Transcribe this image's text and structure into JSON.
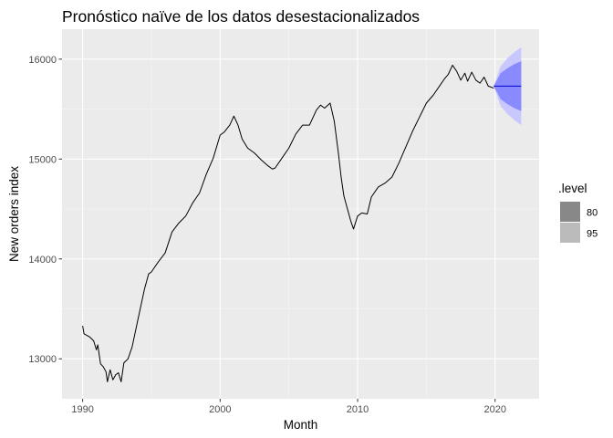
{
  "chart_data": {
    "type": "line",
    "title": "Pronóstico naïve de los datos desestacionalizados",
    "xlabel": "Month",
    "ylabel": "New orders index",
    "xlim": [
      1988.5,
      2023.2
    ],
    "ylim": [
      12600,
      16300
    ],
    "x_ticks": [
      1990,
      2000,
      2010,
      2020
    ],
    "x_tick_labels": [
      "1990",
      "2000",
      "2010",
      "2020"
    ],
    "y_ticks": [
      13000,
      14000,
      15000,
      16000
    ],
    "y_tick_labels": [
      "13000",
      "14000",
      "15000",
      "16000"
    ],
    "grid": true,
    "legend": {
      "title": ".level",
      "position": "right",
      "entries": [
        {
          "label": "80",
          "color": "#888888"
        },
        {
          "label": "95",
          "color": "#bbbbbb"
        }
      ]
    },
    "series": [
      {
        "type": "line",
        "color": "#000000",
        "points": [
          [
            1990.0,
            13330
          ],
          [
            1990.1,
            13250
          ],
          [
            1990.5,
            13220
          ],
          [
            1990.8,
            13180
          ],
          [
            1991.0,
            13090
          ],
          [
            1991.1,
            13140
          ],
          [
            1991.3,
            12950
          ],
          [
            1991.5,
            12920
          ],
          [
            1991.7,
            12870
          ],
          [
            1991.8,
            12770
          ],
          [
            1992.0,
            12890
          ],
          [
            1992.2,
            12790
          ],
          [
            1992.4,
            12840
          ],
          [
            1992.6,
            12860
          ],
          [
            1992.8,
            12770
          ],
          [
            1993.0,
            12960
          ],
          [
            1993.3,
            13000
          ],
          [
            1993.6,
            13120
          ],
          [
            1994.0,
            13380
          ],
          [
            1994.5,
            13700
          ],
          [
            1994.8,
            13850
          ],
          [
            1995.0,
            13870
          ],
          [
            1995.5,
            13970
          ],
          [
            1996.0,
            14060
          ],
          [
            1996.5,
            14270
          ],
          [
            1997.0,
            14360
          ],
          [
            1997.5,
            14430
          ],
          [
            1998.0,
            14560
          ],
          [
            1998.5,
            14660
          ],
          [
            1999.0,
            14850
          ],
          [
            1999.5,
            15010
          ],
          [
            2000.0,
            15240
          ],
          [
            2000.3,
            15270
          ],
          [
            2000.7,
            15340
          ],
          [
            2001.0,
            15430
          ],
          [
            2001.3,
            15340
          ],
          [
            2001.6,
            15200
          ],
          [
            2002.0,
            15110
          ],
          [
            2002.5,
            15060
          ],
          [
            2003.0,
            14990
          ],
          [
            2003.5,
            14930
          ],
          [
            2003.8,
            14900
          ],
          [
            2004.0,
            14910
          ],
          [
            2004.5,
            15010
          ],
          [
            2005.0,
            15110
          ],
          [
            2005.5,
            15250
          ],
          [
            2006.0,
            15340
          ],
          [
            2006.5,
            15340
          ],
          [
            2007.0,
            15490
          ],
          [
            2007.3,
            15540
          ],
          [
            2007.6,
            15510
          ],
          [
            2008.0,
            15560
          ],
          [
            2008.3,
            15380
          ],
          [
            2008.6,
            15060
          ],
          [
            2008.8,
            14820
          ],
          [
            2009.0,
            14630
          ],
          [
            2009.3,
            14480
          ],
          [
            2009.5,
            14380
          ],
          [
            2009.7,
            14300
          ],
          [
            2010.0,
            14430
          ],
          [
            2010.3,
            14460
          ],
          [
            2010.7,
            14450
          ],
          [
            2011.0,
            14620
          ],
          [
            2011.5,
            14720
          ],
          [
            2012.0,
            14760
          ],
          [
            2012.5,
            14820
          ],
          [
            2013.0,
            14960
          ],
          [
            2013.5,
            15120
          ],
          [
            2014.0,
            15280
          ],
          [
            2014.5,
            15420
          ],
          [
            2015.0,
            15560
          ],
          [
            2015.5,
            15640
          ],
          [
            2016.0,
            15740
          ],
          [
            2016.3,
            15800
          ],
          [
            2016.6,
            15850
          ],
          [
            2016.9,
            15940
          ],
          [
            2017.2,
            15880
          ],
          [
            2017.5,
            15790
          ],
          [
            2017.8,
            15860
          ],
          [
            2018.0,
            15780
          ],
          [
            2018.3,
            15870
          ],
          [
            2018.6,
            15790
          ],
          [
            2018.9,
            15760
          ],
          [
            2019.2,
            15820
          ],
          [
            2019.5,
            15730
          ],
          [
            2019.9,
            15710
          ]
        ]
      },
      {
        "type": "forecast",
        "name": "point forecast",
        "color": "#0000cc",
        "x_start": 2019.9,
        "x_end": 2021.9,
        "value": 15730
      }
    ],
    "intervals": [
      {
        "level": "95",
        "color": "#c8c8ff",
        "x": [
          2019.9,
          2020.4,
          2020.9,
          2021.4,
          2021.9
        ],
        "lower": [
          15730,
          15530,
          15450,
          15390,
          15340
        ],
        "upper": [
          15730,
          15930,
          16010,
          16070,
          16120
        ]
      },
      {
        "level": "80",
        "color": "#8a8aff",
        "x": [
          2019.9,
          2020.4,
          2020.9,
          2021.4,
          2021.9
        ],
        "lower": [
          15730,
          15600,
          15550,
          15510,
          15480
        ],
        "upper": [
          15730,
          15860,
          15910,
          15950,
          15980
        ]
      }
    ]
  }
}
